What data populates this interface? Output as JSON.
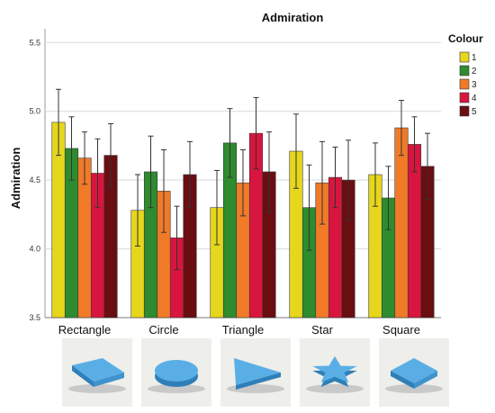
{
  "chart_data": {
    "type": "bar",
    "title": "Admiration",
    "xlabel": "",
    "ylabel": "Admiration",
    "ylim": [
      3.5,
      5.6
    ],
    "yticks": [
      "3.5",
      "4.0",
      "4.5",
      "5.0",
      "5.5"
    ],
    "grid": true,
    "legend": {
      "title": "Colour",
      "placement": "top-right"
    },
    "categories": [
      "Rectangle",
      "Circle",
      "Triangle",
      "Star",
      "Square"
    ],
    "category_icons": [
      "rectangle-shape-icon",
      "circle-shape-icon",
      "triangle-shape-icon",
      "star-shape-icon",
      "square-shape-icon"
    ],
    "series": [
      {
        "name": "1",
        "color": "#e6d61c",
        "values": [
          4.92,
          4.28,
          4.3,
          4.71,
          4.54
        ],
        "error": [
          0.24,
          0.26,
          0.27,
          0.27,
          0.23
        ]
      },
      {
        "name": "2",
        "color": "#2e8b2e",
        "values": [
          4.73,
          4.56,
          4.77,
          4.3,
          4.37
        ],
        "error": [
          0.23,
          0.26,
          0.25,
          0.31,
          0.23
        ]
      },
      {
        "name": "3",
        "color": "#f07a28",
        "values": [
          4.66,
          4.42,
          4.48,
          4.48,
          4.88
        ],
        "error": [
          0.19,
          0.3,
          0.24,
          0.3,
          0.2
        ]
      },
      {
        "name": "4",
        "color": "#d8153e",
        "values": [
          4.55,
          4.08,
          4.84,
          4.52,
          4.76
        ],
        "error": [
          0.25,
          0.23,
          0.26,
          0.22,
          0.2
        ]
      },
      {
        "name": "5",
        "color": "#6a0e12",
        "values": [
          4.68,
          4.54,
          4.56,
          4.5,
          4.6
        ],
        "error": [
          0.23,
          0.24,
          0.29,
          0.29,
          0.24
        ]
      }
    ]
  }
}
